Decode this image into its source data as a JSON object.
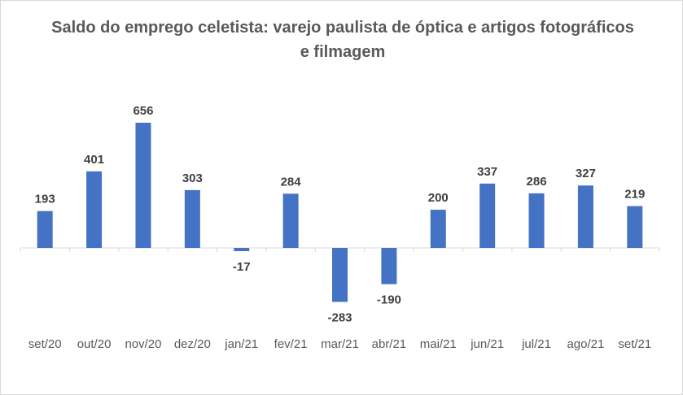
{
  "chart_data": {
    "type": "bar",
    "title": "Saldo do emprego celetista: varejo paulista de óptica e artigos fotográficos e filmagem",
    "categories": [
      "set/20",
      "out/20",
      "nov/20",
      "dez/20",
      "jan/21",
      "fev/21",
      "mar/21",
      "abr/21",
      "mai/21",
      "jun/21",
      "jul/21",
      "ago/21",
      "set/21"
    ],
    "values": [
      193,
      401,
      656,
      303,
      -17,
      284,
      -283,
      -190,
      200,
      337,
      286,
      327,
      219
    ],
    "xlabel": "",
    "ylabel": "",
    "grid": false,
    "legend": "none",
    "bar_color": "#4472c4"
  }
}
